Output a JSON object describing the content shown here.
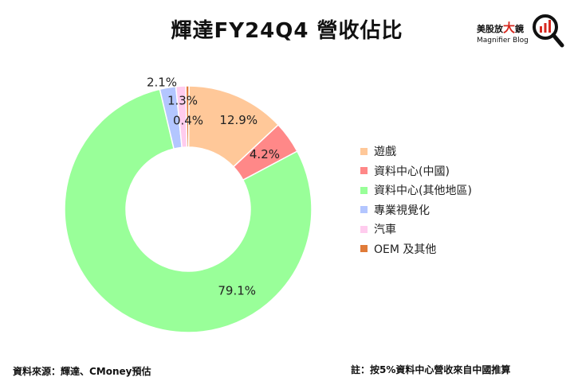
{
  "header": {
    "title": "輝達FY24Q4 營收佔比"
  },
  "logo": {
    "chinese_small": "美股放",
    "chinese_big": "大",
    "chinese_last": "鏡",
    "english": "Magnifier Blog",
    "icon": "magnifier-chart-icon",
    "accent_color": "#d6281f"
  },
  "chart_data": {
    "type": "pie",
    "style": "donut",
    "title": "輝達FY24Q4 營收佔比",
    "categories": [
      "遊戲",
      "資料中心(中國)",
      "資料中心(其他地區)",
      "專業視覺化",
      "汽車",
      "OEM 及其他"
    ],
    "values": [
      12.9,
      4.2,
      79.1,
      2.1,
      1.3,
      0.4
    ],
    "labels": [
      "12.9%",
      "4.2%",
      "79.1%",
      "2.1%",
      "1.3%",
      "0.4%"
    ],
    "colors": [
      "#ffc899",
      "#ff8888",
      "#99ff99",
      "#b3c6ff",
      "#ffccee",
      "#e07b39"
    ],
    "legend_position": "right"
  },
  "footer": {
    "source": "資料來源：輝達、CMoney預估",
    "note": "註：按5%資料中心營收來自中國推算"
  }
}
